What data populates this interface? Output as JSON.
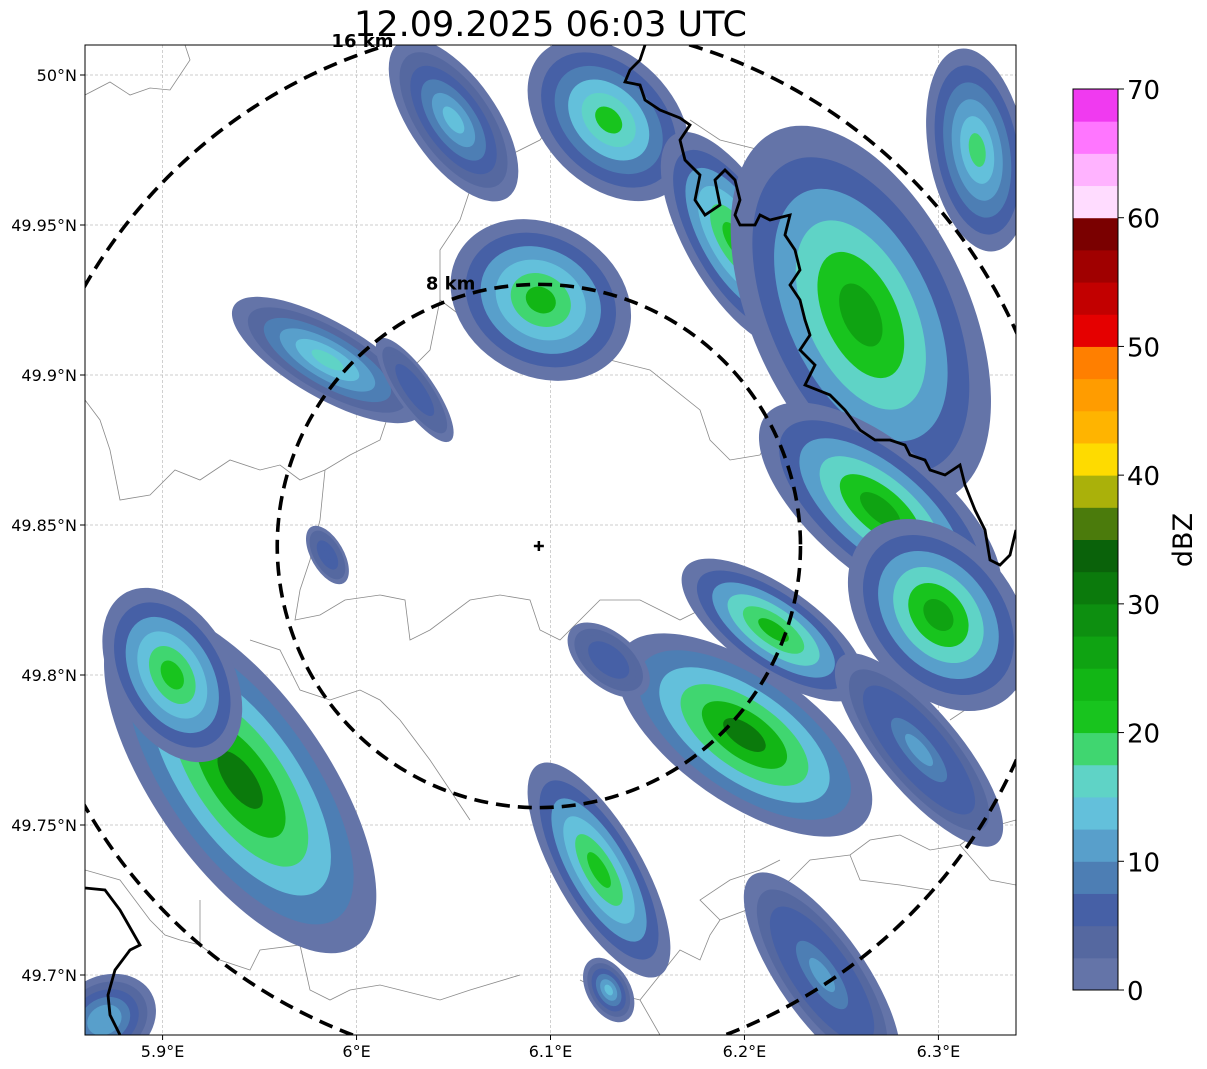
{
  "title": "12.09.2025 06:03 UTC",
  "map": {
    "lon_range": [
      5.86,
      6.34
    ],
    "lat_range": [
      49.68,
      50.01
    ],
    "lon_ticks": [
      {
        "value": 5.9,
        "label": "5.9°E"
      },
      {
        "value": 6.0,
        "label": "6°E"
      },
      {
        "value": 6.1,
        "label": "6.1°E"
      },
      {
        "value": 6.2,
        "label": "6.2°E"
      },
      {
        "value": 6.3,
        "label": "6.3°E"
      }
    ],
    "lat_ticks": [
      {
        "value": 50.0,
        "label": "50°N"
      },
      {
        "value": 49.95,
        "label": "49.95°N"
      },
      {
        "value": 49.9,
        "label": "49.9°N"
      },
      {
        "value": 49.85,
        "label": "49.85°N"
      },
      {
        "value": 49.8,
        "label": "49.8°N"
      },
      {
        "value": 49.75,
        "label": "49.75°N"
      },
      {
        "value": 49.7,
        "label": "49.7°N"
      }
    ],
    "radar_site": {
      "lon": 6.094,
      "lat": 49.843
    },
    "range_rings": [
      {
        "radius_km": 8,
        "label": "8 km"
      },
      {
        "radius_km": 16,
        "label": "16 km"
      }
    ],
    "gridlines": true
  },
  "colorbar": {
    "title": "dBZ",
    "min": 0,
    "max": 70,
    "ticks": [
      {
        "value": 0,
        "label": "0"
      },
      {
        "value": 10,
        "label": "10"
      },
      {
        "value": 20,
        "label": "20"
      },
      {
        "value": 30,
        "label": "30"
      },
      {
        "value": 40,
        "label": "40"
      },
      {
        "value": 50,
        "label": "50"
      },
      {
        "value": 60,
        "label": "60"
      },
      {
        "value": 70,
        "label": "70"
      }
    ],
    "colors": [
      "#6474a8",
      "#5568a0",
      "#4660a6",
      "#4d7eb4",
      "#589fcb",
      "#63c0db",
      "#5fd3c6",
      "#40d670",
      "#18c41e",
      "#12b615",
      "#0fa312",
      "#0d8f10",
      "#0b7a0c",
      "#0a620a",
      "#4b7b0c",
      "#aab10a",
      "#fedb00",
      "#ffb400",
      "#ff9c00",
      "#ff7f00",
      "#e50000",
      "#c20000",
      "#a00000",
      "#7a0000",
      "#ffdcff",
      "#ffb3ff",
      "#ff76ff",
      "#f03af0"
    ]
  },
  "reflectivity_cells": [
    {
      "lon": 5.94,
      "lat": 49.765,
      "rx_km": 3.2,
      "ry_km": 7.5,
      "angle": -35,
      "dbz": 30
    },
    {
      "lon": 5.905,
      "lat": 49.8,
      "rx_km": 2.2,
      "ry_km": 3.5,
      "angle": -30,
      "dbz": 22
    },
    {
      "lon": 5.87,
      "lat": 49.685,
      "rx_km": 2.0,
      "ry_km": 1.6,
      "angle": -30,
      "dbz": 12
    },
    {
      "lon": 5.985,
      "lat": 49.905,
      "rx_km": 1.4,
      "ry_km": 4.0,
      "angle": -60,
      "dbz": 16
    },
    {
      "lon": 6.03,
      "lat": 49.895,
      "rx_km": 0.7,
      "ry_km": 2.3,
      "angle": -35,
      "dbz": 7
    },
    {
      "lon": 6.095,
      "lat": 49.925,
      "rx_km": 2.8,
      "ry_km": 3.5,
      "angle": -60,
      "dbz": 23
    },
    {
      "lon": 6.05,
      "lat": 49.985,
      "rx_km": 1.6,
      "ry_km": 3.5,
      "angle": -35,
      "dbz": 14
    },
    {
      "lon": 6.13,
      "lat": 49.985,
      "rx_km": 2.4,
      "ry_km": 3.5,
      "angle": -45,
      "dbz": 20
    },
    {
      "lon": 6.195,
      "lat": 49.945,
      "rx_km": 1.8,
      "ry_km": 4.5,
      "angle": -30,
      "dbz": 22
    },
    {
      "lon": 6.26,
      "lat": 49.92,
      "rx_km": 4.0,
      "ry_km": 7.5,
      "angle": -25,
      "dbz": 27
    },
    {
      "lon": 6.32,
      "lat": 49.975,
      "rx_km": 1.8,
      "ry_km": 3.8,
      "angle": -10,
      "dbz": 18
    },
    {
      "lon": 6.27,
      "lat": 49.855,
      "rx_km": 2.4,
      "ry_km": 5.5,
      "angle": -50,
      "dbz": 27
    },
    {
      "lon": 6.3,
      "lat": 49.82,
      "rx_km": 2.8,
      "ry_km": 4.0,
      "angle": -40,
      "dbz": 25
    },
    {
      "lon": 6.215,
      "lat": 49.815,
      "rx_km": 1.6,
      "ry_km": 4.0,
      "angle": -55,
      "dbz": 24
    },
    {
      "lon": 6.2,
      "lat": 49.78,
      "rx_km": 2.5,
      "ry_km": 5.5,
      "angle": -55,
      "dbz": 30
    },
    {
      "lon": 6.29,
      "lat": 49.775,
      "rx_km": 1.5,
      "ry_km": 4.5,
      "angle": -40,
      "dbz": 10
    },
    {
      "lon": 6.125,
      "lat": 49.735,
      "rx_km": 1.6,
      "ry_km": 4.5,
      "angle": -30,
      "dbz": 22
    },
    {
      "lon": 6.13,
      "lat": 49.805,
      "rx_km": 1.0,
      "ry_km": 1.8,
      "angle": -50,
      "dbz": 7
    },
    {
      "lon": 6.24,
      "lat": 49.7,
      "rx_km": 1.6,
      "ry_km": 4.5,
      "angle": -35,
      "dbz": 10
    },
    {
      "lon": 6.13,
      "lat": 49.695,
      "rx_km": 0.8,
      "ry_km": 1.3,
      "angle": -30,
      "dbz": 14
    },
    {
      "lon": 5.985,
      "lat": 49.84,
      "rx_km": 0.6,
      "ry_km": 1.2,
      "angle": -30,
      "dbz": 7
    }
  ]
}
